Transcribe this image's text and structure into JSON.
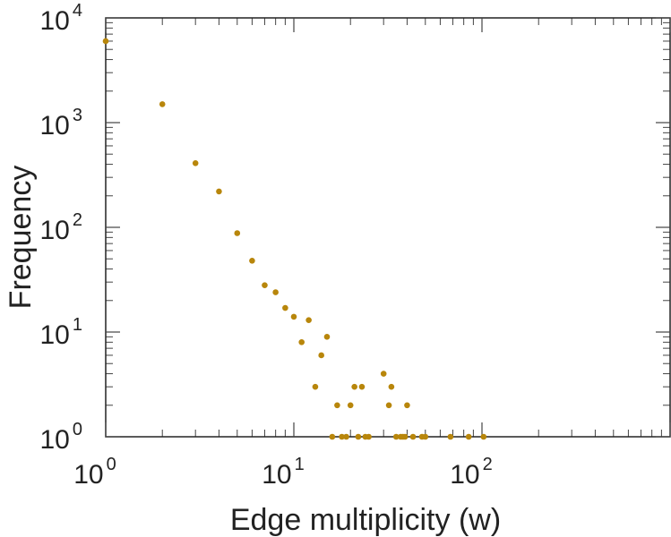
{
  "chart_data": {
    "type": "scatter",
    "title": "",
    "xlabel": "Edge multiplicity (w)",
    "ylabel": "Frequency",
    "xscale": "log",
    "yscale": "log",
    "xlim": [
      1,
      1000
    ],
    "ylim": [
      1,
      10000
    ],
    "grid": false,
    "marker_color": "#b8860b",
    "x_ticks": [
      {
        "base": "10",
        "exp": "0",
        "value": 1
      },
      {
        "base": "10",
        "exp": "1",
        "value": 10
      },
      {
        "base": "10",
        "exp": "2",
        "value": 100
      }
    ],
    "y_ticks": [
      {
        "base": "10",
        "exp": "0",
        "value": 1
      },
      {
        "base": "10",
        "exp": "1",
        "value": 10
      },
      {
        "base": "10",
        "exp": "2",
        "value": 100
      },
      {
        "base": "10",
        "exp": "3",
        "value": 1000
      },
      {
        "base": "10",
        "exp": "4",
        "value": 10000
      }
    ],
    "points": [
      {
        "x": 1,
        "y": 6000
      },
      {
        "x": 2,
        "y": 1500
      },
      {
        "x": 3,
        "y": 410
      },
      {
        "x": 4,
        "y": 220
      },
      {
        "x": 5,
        "y": 88
      },
      {
        "x": 6,
        "y": 48
      },
      {
        "x": 7,
        "y": 28
      },
      {
        "x": 8,
        "y": 24
      },
      {
        "x": 9,
        "y": 17
      },
      {
        "x": 10,
        "y": 14
      },
      {
        "x": 11,
        "y": 8
      },
      {
        "x": 12,
        "y": 13
      },
      {
        "x": 13,
        "y": 3
      },
      {
        "x": 14,
        "y": 6
      },
      {
        "x": 15,
        "y": 9
      },
      {
        "x": 16,
        "y": 1
      },
      {
        "x": 17,
        "y": 2
      },
      {
        "x": 18,
        "y": 1
      },
      {
        "x": 19,
        "y": 1
      },
      {
        "x": 20,
        "y": 2
      },
      {
        "x": 21,
        "y": 3
      },
      {
        "x": 22,
        "y": 1
      },
      {
        "x": 23,
        "y": 3
      },
      {
        "x": 24,
        "y": 1
      },
      {
        "x": 25,
        "y": 1
      },
      {
        "x": 30,
        "y": 4
      },
      {
        "x": 32,
        "y": 2
      },
      {
        "x": 33,
        "y": 3
      },
      {
        "x": 35,
        "y": 1
      },
      {
        "x": 37,
        "y": 1
      },
      {
        "x": 38,
        "y": 1
      },
      {
        "x": 39,
        "y": 1
      },
      {
        "x": 40,
        "y": 2
      },
      {
        "x": 43,
        "y": 1
      },
      {
        "x": 48,
        "y": 1
      },
      {
        "x": 50,
        "y": 1
      },
      {
        "x": 68,
        "y": 1
      },
      {
        "x": 85,
        "y": 1
      },
      {
        "x": 102,
        "y": 1
      }
    ]
  }
}
